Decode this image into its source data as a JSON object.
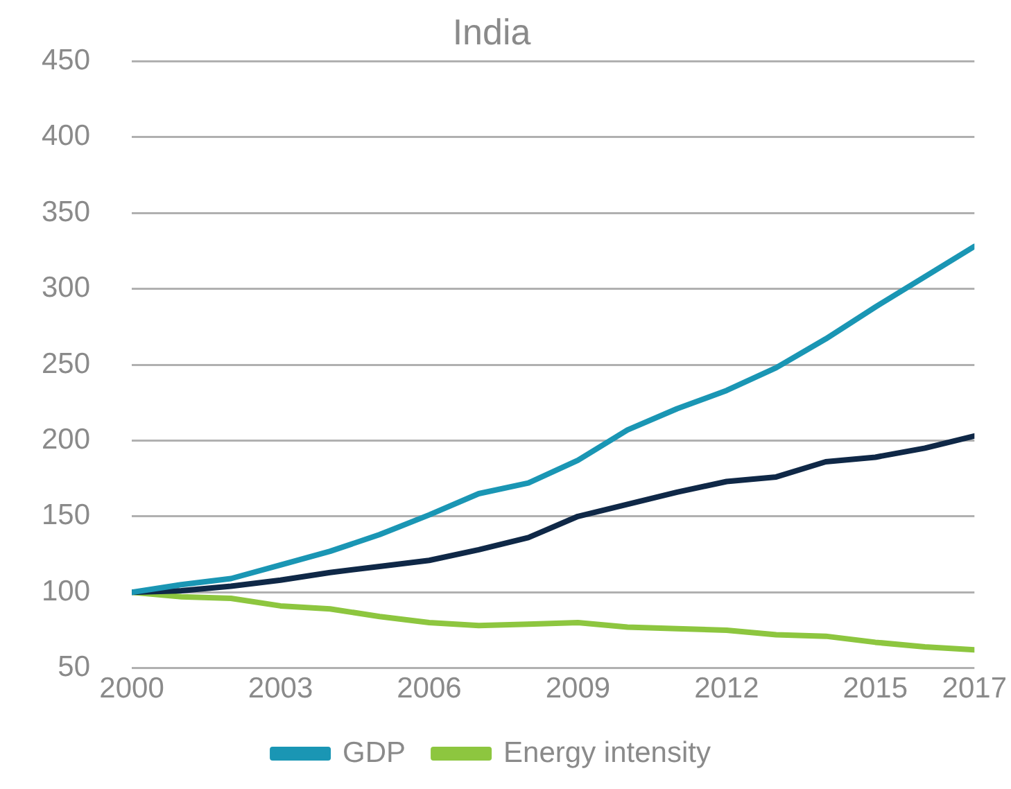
{
  "chart_data": {
    "type": "line",
    "title": "India",
    "x": [
      2000,
      2001,
      2002,
      2003,
      2004,
      2005,
      2006,
      2007,
      2008,
      2009,
      2010,
      2011,
      2012,
      2013,
      2014,
      2015,
      2016,
      2017
    ],
    "xlim": [
      2000,
      2017
    ],
    "xticks": [
      2000,
      2003,
      2006,
      2009,
      2012,
      2015,
      2017
    ],
    "ylim": [
      50,
      450
    ],
    "yticks": [
      50,
      100,
      150,
      200,
      250,
      300,
      350,
      400,
      450
    ],
    "grid": "y",
    "legend": "bottom",
    "marker": "none",
    "series": [
      {
        "name": "GDP",
        "color": "#1a96b4",
        "values": [
          100,
          105,
          109,
          118,
          127,
          138,
          151,
          165,
          172,
          187,
          207,
          221,
          233,
          248,
          267,
          288,
          308,
          328
        ]
      },
      {
        "color": "#0f2847",
        "values": [
          100,
          101,
          104,
          108,
          113,
          117,
          121,
          128,
          136,
          150,
          158,
          166,
          173,
          176,
          186,
          189,
          195,
          203
        ]
      },
      {
        "name": "Energy intensity",
        "color": "#8dc63f",
        "values": [
          100,
          97,
          96,
          91,
          89,
          84,
          80,
          78,
          79,
          80,
          77,
          76,
          75,
          72,
          71,
          67,
          64,
          62
        ]
      }
    ]
  }
}
